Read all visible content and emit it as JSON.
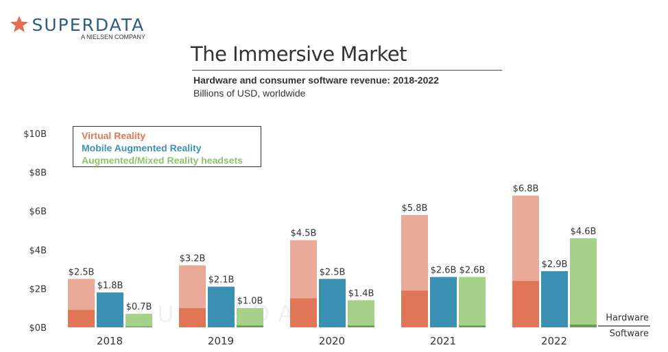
{
  "logo": {
    "brand": "SUPERDATA",
    "tagline": "A NIELSEN COMPANY"
  },
  "watermark": "SUPERDATA",
  "colors": {
    "vr_hw": "#eba997",
    "vr_sw": "#e17657",
    "mar": "#3a91b3",
    "ar_hw": "#a6d18a",
    "ar_sw": "#6a9a56"
  },
  "chart_data": {
    "type": "bar",
    "title": "The Immersive Market",
    "subtitle": "Hardware and consumer software revenue: 2018-2022",
    "ylabel": "Billions of USD, worldwide",
    "categories": [
      "2018",
      "2019",
      "2020",
      "2021",
      "2022"
    ],
    "ylim": [
      0,
      10
    ],
    "yticks": [
      "$0B",
      "$2B",
      "$4B",
      "$6B",
      "$8B",
      "$10B"
    ],
    "grid": false,
    "legend_position": "top-left",
    "stack_labels": {
      "top": "Hardware",
      "bottom": "Software"
    },
    "series": [
      {
        "name": "Virtual Reality",
        "totals": [
          2.5,
          3.2,
          4.5,
          5.8,
          6.8
        ],
        "software": [
          0.9,
          1.0,
          1.5,
          1.9,
          2.4
        ],
        "labels": [
          "$2.5B",
          "$3.2B",
          "$4.5B",
          "$5.8B",
          "$6.8B"
        ]
      },
      {
        "name": "Mobile Augmented Reality",
        "totals": [
          1.8,
          2.1,
          2.5,
          2.6,
          2.9
        ],
        "software": [
          1.8,
          2.1,
          2.5,
          2.6,
          2.9
        ],
        "labels": [
          "$1.8B",
          "$2.1B",
          "$2.5B",
          "$2.6B",
          "$2.9B"
        ]
      },
      {
        "name": "Augmented/Mixed Reality headsets",
        "totals": [
          0.7,
          1.0,
          1.4,
          2.6,
          4.6
        ],
        "software": [
          0.05,
          0.1,
          0.1,
          0.1,
          0.15
        ],
        "labels": [
          "$0.7B",
          "$1.0B",
          "$1.4B",
          "$2.6B",
          "$4.6B"
        ]
      }
    ]
  }
}
